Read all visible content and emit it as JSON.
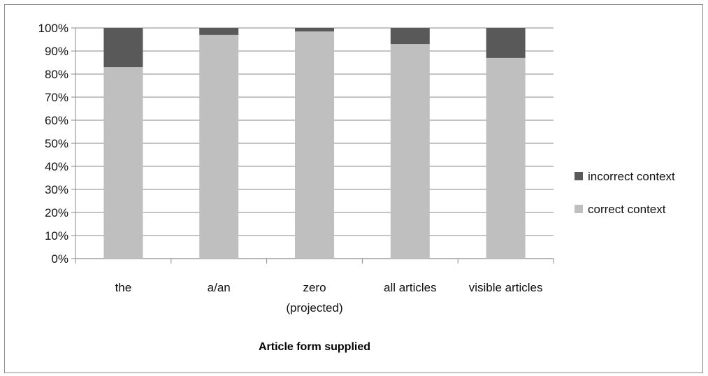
{
  "chart_data": {
    "type": "bar",
    "stacked": true,
    "percent_axis": true,
    "categories": [
      [
        "the"
      ],
      [
        "a/an"
      ],
      [
        "zero",
        "(projected)"
      ],
      [
        "all articles"
      ],
      [
        "visible articles"
      ]
    ],
    "series": [
      {
        "name": "correct context",
        "color": "#bfbfbf",
        "values": [
          83,
          97,
          98.5,
          93,
          87
        ]
      },
      {
        "name": "incorrect context",
        "color": "#595959",
        "values": [
          17,
          3,
          1.5,
          7,
          13
        ]
      }
    ],
    "legend_order": [
      "incorrect context",
      "correct context"
    ],
    "legend_position": "right",
    "ylim": [
      0,
      100
    ],
    "yticks": [
      0,
      10,
      20,
      30,
      40,
      50,
      60,
      70,
      80,
      90,
      100
    ],
    "ytick_labels": [
      "0%",
      "10%",
      "20%",
      "30%",
      "40%",
      "50%",
      "60%",
      "70%",
      "80%",
      "90%",
      "100%"
    ],
    "grid": true,
    "xlabel": "Article form supplied",
    "ylabel": "",
    "title": ""
  }
}
